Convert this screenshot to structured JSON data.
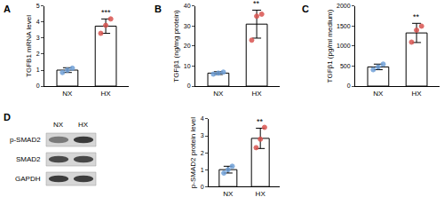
{
  "chart_data": [
    {
      "type": "bar",
      "panel": "A",
      "y_label": "TGFB1 mRNA level",
      "categories": [
        "NX",
        "HX"
      ],
      "values": [
        1.0,
        3.75
      ],
      "error": [
        0.15,
        0.45
      ],
      "points": [
        [
          0.85,
          1.0,
          1.12
        ],
        [
          3.3,
          3.8,
          4.2
        ]
      ],
      "color": "#ffffff",
      "colors": [
        "#6fa0d8",
        "#d9534f"
      ],
      "ylim": [
        0,
        5
      ],
      "yticks": [
        0,
        1,
        2,
        3,
        4,
        5
      ],
      "grid": false,
      "annotations": [
        {
          "category": "HX",
          "text": "***"
        }
      ]
    },
    {
      "type": "bar",
      "panel": "B",
      "y_label": "TGFβ1 (ng/mg protein)",
      "categories": [
        "NX",
        "HX"
      ],
      "values": [
        6.5,
        31
      ],
      "error": [
        0.7,
        7
      ],
      "points": [
        [
          6.0,
          6.5,
          7.0
        ],
        [
          23,
          35,
          36
        ]
      ],
      "color": "#ffffff",
      "colors": [
        "#6fa0d8",
        "#d9534f"
      ],
      "ylim": [
        0,
        40
      ],
      "yticks": [
        0,
        10,
        20,
        30,
        40
      ],
      "grid": false,
      "annotations": [
        {
          "category": "HX",
          "text": "**"
        }
      ]
    },
    {
      "type": "bar",
      "panel": "C",
      "y_label": "TGFβ1 (pg/ml medium)",
      "categories": [
        "NX",
        "HX"
      ],
      "values": [
        480,
        1330
      ],
      "error": [
        70,
        240
      ],
      "points": [
        [
          410,
          480,
          550
        ],
        [
          1100,
          1400,
          1500
        ]
      ],
      "color": "#ffffff",
      "colors": [
        "#6fa0d8",
        "#d9534f"
      ],
      "ylim": [
        0,
        2000
      ],
      "yticks": [
        0,
        500,
        1000,
        1500,
        2000
      ],
      "grid": false,
      "annotations": [
        {
          "category": "HX",
          "text": "**"
        }
      ]
    },
    {
      "type": "bar",
      "panel": "D",
      "y_label": "p-SMAD2 protein level",
      "categories": [
        "NX",
        "HX"
      ],
      "values": [
        1.0,
        2.85
      ],
      "error": [
        0.2,
        0.6
      ],
      "points": [
        [
          0.8,
          1.0,
          1.2
        ],
        [
          2.3,
          2.8,
          3.5
        ]
      ],
      "color": "#ffffff",
      "colors": [
        "#6fa0d8",
        "#d9534f"
      ],
      "ylim": [
        0,
        4
      ],
      "yticks": [
        0,
        1,
        2,
        3,
        4
      ],
      "grid": false,
      "annotations": [
        {
          "category": "HX",
          "text": "**"
        }
      ]
    }
  ],
  "blot": {
    "lanes": [
      "NX",
      "HX"
    ],
    "rows": [
      "p-SMAD2",
      "SMAD2",
      "GAPDH"
    ]
  }
}
